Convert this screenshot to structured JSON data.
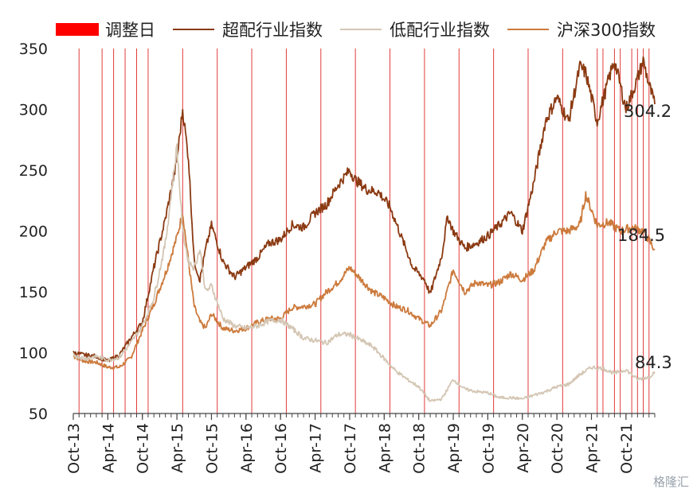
{
  "chart_data": {
    "type": "line",
    "y_axis": {
      "ticks": [
        50,
        100,
        150,
        200,
        250,
        300,
        350
      ],
      "range": [
        50,
        350
      ]
    },
    "x_axis": {
      "tick_labels": [
        "Oct-13",
        "Apr-14",
        "Oct-14",
        "Apr-15",
        "Oct-15",
        "Apr-16",
        "Oct-16",
        "Apr-17",
        "Oct-17",
        "Apr-18",
        "Oct-18",
        "Apr-19",
        "Oct-19",
        "Apr-20",
        "Oct-20",
        "Apr-21",
        "Oct-21"
      ],
      "tick_dates": [
        "2013-10",
        "2014-04",
        "2014-10",
        "2015-04",
        "2015-10",
        "2016-04",
        "2016-10",
        "2017-04",
        "2017-10",
        "2018-04",
        "2018-10",
        "2019-04",
        "2019-10",
        "2020-04",
        "2020-10",
        "2021-04",
        "2021-10"
      ],
      "range": [
        "2013-10",
        "2022-03"
      ]
    },
    "legend": [
      {
        "label": "调整日",
        "type": "bar",
        "color": "#ff0000"
      },
      {
        "label": "超配行业指数",
        "type": "line",
        "color": "#8b3a12"
      },
      {
        "label": "低配行业指数",
        "type": "line",
        "color": "#d4c6b4"
      },
      {
        "label": "沪深300指数",
        "type": "line",
        "color": "#cc7a3c"
      }
    ],
    "adjustment_dates": [
      "2013-11",
      "2014-03",
      "2014-05",
      "2014-07",
      "2014-09",
      "2014-11",
      "2015-05",
      "2015-11",
      "2016-05",
      "2016-11",
      "2017-05",
      "2017-11",
      "2018-05",
      "2018-11",
      "2019-05",
      "2019-11",
      "2020-05",
      "2020-11",
      "2021-05",
      "2021-06",
      "2021-08",
      "2021-09",
      "2021-11",
      "2021-12",
      "2022-01",
      "2022-02"
    ],
    "series": [
      {
        "name": "超配行业指数",
        "color": "#8b3a12",
        "x": [
          "2013-10",
          "2013-12",
          "2014-02",
          "2014-04",
          "2014-06",
          "2014-08",
          "2014-10",
          "2014-12",
          "2015-02",
          "2015-04",
          "2015-05",
          "2015-06",
          "2015-07",
          "2015-08",
          "2015-09",
          "2015-10",
          "2015-12",
          "2016-02",
          "2016-04",
          "2016-06",
          "2016-08",
          "2016-10",
          "2016-12",
          "2017-02",
          "2017-04",
          "2017-06",
          "2017-08",
          "2017-10",
          "2017-11",
          "2018-01",
          "2018-03",
          "2018-05",
          "2018-07",
          "2018-09",
          "2018-11",
          "2018-12",
          "2019-02",
          "2019-03",
          "2019-04",
          "2019-06",
          "2019-08",
          "2019-10",
          "2019-12",
          "2020-02",
          "2020-04",
          "2020-06",
          "2020-08",
          "2020-10",
          "2020-12",
          "2021-02",
          "2021-03",
          "2021-05",
          "2021-07",
          "2021-08",
          "2021-10",
          "2021-12",
          "2022-01",
          "2022-02",
          "2022-03"
        ],
        "y": [
          100,
          98,
          97,
          93,
          98,
          112,
          125,
          170,
          210,
          258,
          300,
          260,
          175,
          160,
          185,
          205,
          175,
          162,
          170,
          178,
          190,
          193,
          205,
          203,
          215,
          222,
          238,
          250,
          242,
          234,
          232,
          220,
          195,
          170,
          160,
          148,
          180,
          212,
          200,
          186,
          190,
          196,
          205,
          215,
          200,
          240,
          290,
          310,
          290,
          335,
          330,
          290,
          325,
          340,
          300,
          325,
          340,
          320,
          304.2
        ]
      },
      {
        "name": "低配行业指数",
        "color": "#d4c6b4",
        "x": [
          "2013-10",
          "2013-12",
          "2014-02",
          "2014-04",
          "2014-06",
          "2014-08",
          "2014-10",
          "2014-12",
          "2015-02",
          "2015-04",
          "2015-05",
          "2015-06",
          "2015-07",
          "2015-08",
          "2015-09",
          "2015-10",
          "2015-12",
          "2016-02",
          "2016-04",
          "2016-06",
          "2016-08",
          "2016-10",
          "2016-12",
          "2017-02",
          "2017-04",
          "2017-06",
          "2017-08",
          "2017-10",
          "2017-12",
          "2018-02",
          "2018-04",
          "2018-06",
          "2018-08",
          "2018-10",
          "2018-12",
          "2019-02",
          "2019-04",
          "2019-06",
          "2019-08",
          "2019-10",
          "2019-12",
          "2020-02",
          "2020-04",
          "2020-06",
          "2020-08",
          "2020-10",
          "2020-12",
          "2021-02",
          "2021-04",
          "2021-06",
          "2021-08",
          "2021-10",
          "2021-12",
          "2022-02",
          "2022-03"
        ],
        "y": [
          98,
          95,
          97,
          94,
          96,
          108,
          122,
          145,
          190,
          270,
          200,
          175,
          170,
          185,
          150,
          155,
          128,
          122,
          120,
          122,
          126,
          127,
          120,
          112,
          110,
          108,
          115,
          115,
          110,
          105,
          95,
          85,
          78,
          72,
          60,
          62,
          78,
          70,
          68,
          67,
          63,
          63,
          62,
          65,
          68,
          72,
          74,
          82,
          88,
          87,
          83,
          86,
          78,
          80,
          84.3
        ]
      },
      {
        "name": "沪深300指数",
        "color": "#cc7a3c",
        "x": [
          "2013-10",
          "2013-12",
          "2014-02",
          "2014-04",
          "2014-06",
          "2014-08",
          "2014-10",
          "2014-12",
          "2015-02",
          "2015-04",
          "2015-05",
          "2015-06",
          "2015-07",
          "2015-08",
          "2015-09",
          "2015-10",
          "2015-12",
          "2016-02",
          "2016-04",
          "2016-06",
          "2016-08",
          "2016-10",
          "2016-12",
          "2017-02",
          "2017-04",
          "2017-06",
          "2017-08",
          "2017-10",
          "2017-12",
          "2018-02",
          "2018-04",
          "2018-06",
          "2018-08",
          "2018-10",
          "2018-12",
          "2019-02",
          "2019-04",
          "2019-06",
          "2019-08",
          "2019-10",
          "2019-12",
          "2020-02",
          "2020-04",
          "2020-06",
          "2020-08",
          "2020-10",
          "2020-12",
          "2021-02",
          "2021-03",
          "2021-05",
          "2021-07",
          "2021-09",
          "2021-11",
          "2022-01",
          "2022-03"
        ],
        "y": [
          97,
          93,
          92,
          88,
          88,
          96,
          118,
          140,
          165,
          195,
          215,
          175,
          138,
          125,
          120,
          132,
          120,
          118,
          120,
          125,
          128,
          128,
          137,
          138,
          140,
          150,
          158,
          170,
          160,
          150,
          145,
          138,
          135,
          128,
          122,
          135,
          168,
          150,
          158,
          155,
          158,
          165,
          160,
          168,
          190,
          200,
          200,
          205,
          230,
          205,
          207,
          200,
          203,
          200,
          184.5
        ]
      }
    ],
    "end_labels": [
      "304.2",
      "184.5",
      "84.3"
    ]
  },
  "watermark": "格隆汇"
}
